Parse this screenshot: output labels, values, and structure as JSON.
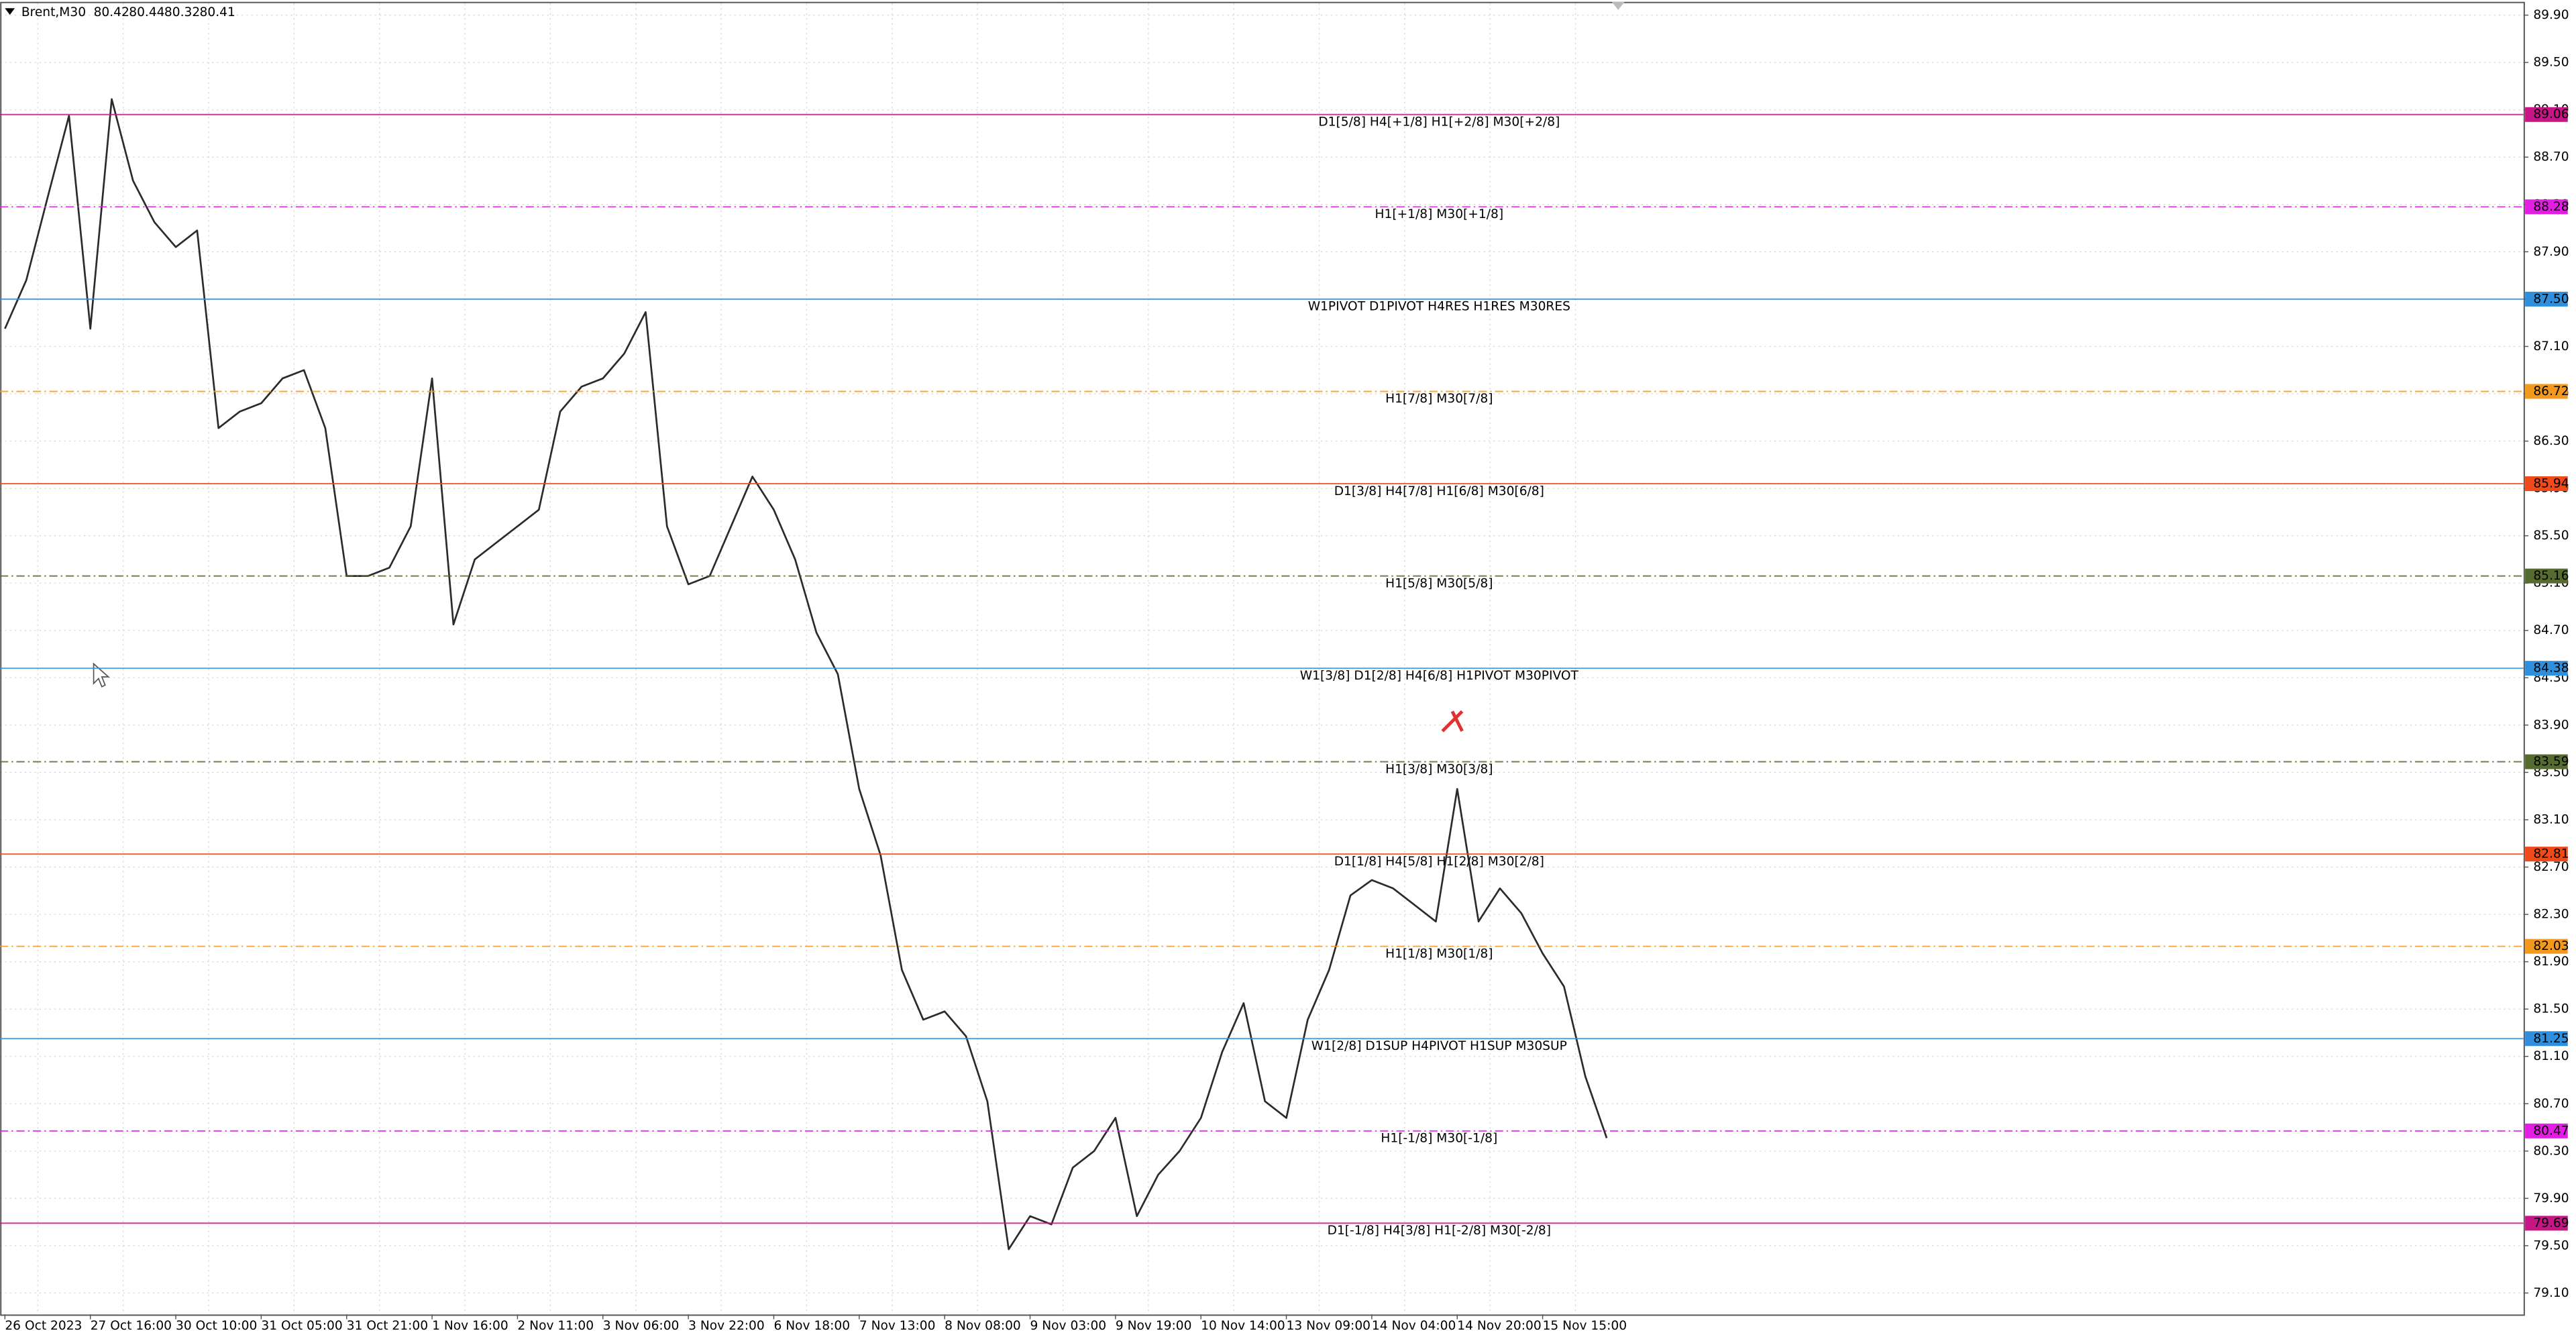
{
  "chart_data": {
    "type": "line",
    "title": "Brent,M30",
    "ohlc": [
      80.42,
      80.44,
      80.32,
      80.41
    ],
    "categories": [
      "26 Oct 2023",
      null,
      null,
      null,
      "27 Oct 16:00",
      null,
      null,
      null,
      "30 Oct 10:00",
      null,
      null,
      null,
      "31 Oct 05:00",
      null,
      null,
      null,
      "31 Oct 21:00",
      null,
      null,
      null,
      "1 Nov 16:00",
      null,
      null,
      null,
      "2 Nov 11:00",
      null,
      null,
      null,
      "3 Nov 06:00",
      null,
      null,
      null,
      "3 Nov 22:00",
      null,
      null,
      null,
      "6 Nov 18:00",
      null,
      null,
      null,
      "7 Nov 13:00",
      null,
      null,
      null,
      "8 Nov 08:00",
      null,
      null,
      null,
      "9 Nov 03:00",
      null,
      null,
      null,
      "9 Nov 19:00",
      null,
      null,
      null,
      "10 Nov 14:00",
      null,
      null,
      null,
      "13 Nov 09:00",
      null,
      null,
      null,
      "14 Nov 04:00",
      null,
      null,
      null,
      "14 Nov 20:00",
      null,
      null,
      null,
      "15 Nov 15:00",
      null,
      null,
      null
    ],
    "series": [
      {
        "name": "Brent",
        "color": "#2b2b2b",
        "values": [
          87.25,
          87.66,
          88.36,
          89.05,
          87.25,
          89.19,
          88.5,
          88.15,
          87.94,
          88.08,
          86.41,
          86.55,
          86.62,
          86.83,
          86.9,
          86.41,
          85.16,
          85.16,
          85.23,
          85.58,
          86.83,
          84.75,
          85.3,
          85.44,
          85.58,
          85.72,
          86.55,
          86.76,
          86.83,
          87.04,
          87.39,
          85.58,
          85.09,
          85.16,
          85.58,
          86.0,
          85.72,
          85.3,
          84.68,
          84.33,
          83.36,
          82.8,
          81.83,
          81.41,
          81.48,
          81.27,
          80.72,
          79.47,
          79.75,
          79.68,
          80.16,
          80.3,
          80.58,
          79.75,
          80.1,
          80.3,
          80.58,
          81.14,
          81.55,
          80.72,
          80.58,
          81.41,
          81.83,
          82.46,
          82.59,
          82.52,
          82.38,
          82.24,
          83.36,
          82.24,
          82.52,
          82.31,
          81.97,
          81.69,
          80.93,
          80.41
        ]
      }
    ],
    "levels": [
      {
        "price": 89.06,
        "label": "D1[5/8] H4[+1/8] H1[+2/8] M30[+2/8]",
        "color": "#c71585",
        "dashed": false
      },
      {
        "price": 88.28,
        "label": "H1[+1/8] M30[+1/8]",
        "color": "#e31ee3",
        "dashed": true
      },
      {
        "price": {
          "value": 87.5,
          "label": "87.50"
        },
        "label": "W1PIVOT D1PIVOT H4RES H1RES M30RES",
        "color": "#2f8fdc",
        "dashed": false
      },
      {
        "price": 86.72,
        "label": "H1[7/8] M30[7/8]",
        "color": "#f39a1e",
        "dashed": true
      },
      {
        "price": 85.94,
        "label": "D1[3/8] H4[7/8] H1[6/8] M30[6/8]",
        "color": "#f04a1a",
        "dashed": false
      },
      {
        "price": 85.16,
        "label": "H1[5/8] M30[5/8]",
        "color": "#556b2f",
        "dashed": true
      },
      {
        "price": 84.38,
        "label": "W1[3/8] D1[2/8] H4[6/8] H1PIVOT M30PIVOT",
        "color": "#2f8fdc",
        "dashed": false
      },
      {
        "price": 83.59,
        "label": "H1[3/8] M30[3/8]",
        "color": "#556b2f",
        "dashed": true
      },
      {
        "price": 82.81,
        "label": "D1[1/8] H4[5/8] H1[2/8] M30[2/8]",
        "color": "#f04a1a",
        "dashed": false
      },
      {
        "price": 82.03,
        "label": "H1[1/8] M30[1/8]",
        "color": "#f39a1e",
        "dashed": true
      },
      {
        "price": 81.25,
        "label": "W1[2/8] D1SUP H4PIVOT H1SUP M30SUP",
        "color": "#2f8fdc",
        "dashed": false
      },
      {
        "price": 80.47,
        "label": "H1[-1/8] M30[-1/8]",
        "color": "#e31ee3",
        "dashed": true
      },
      {
        "price": 79.69,
        "label": "D1[-1/8] H4[3/8] H1[-2/8] M30[-2/8]",
        "color": "#c71585",
        "dashed": false
      }
    ],
    "ylim": [
      78.92,
      90.0
    ],
    "yticks": [
      {
        "value": 89.9,
        "label": "89.90"
      },
      {
        "value": 89.5,
        "label": "89.50"
      },
      {
        "value": 89.1,
        "label": "89.10"
      },
      {
        "value": 88.7,
        "label": "88.70"
      },
      {
        "value": 88.3,
        "label": "88.30"
      },
      {
        "value": 87.9,
        "label": "87.90"
      },
      {
        "value": 87.5,
        "label": "87.50"
      },
      {
        "value": 87.1,
        "label": "87.10"
      },
      {
        "value": 86.7,
        "label": "86.70"
      },
      {
        "value": 86.3,
        "label": "86.30"
      },
      {
        "value": 85.9,
        "label": "85.90"
      },
      {
        "value": 85.5,
        "label": "85.50"
      },
      {
        "value": 85.1,
        "label": "85.10"
      },
      {
        "value": 84.7,
        "label": "84.70"
      },
      {
        "value": 84.3,
        "label": "84.30"
      },
      {
        "value": 83.9,
        "label": "83.90"
      },
      {
        "value": 83.5,
        "label": "83.50"
      },
      {
        "value": 83.1,
        "label": "83.10"
      },
      {
        "value": 82.7,
        "label": "82.70"
      },
      {
        "value": 82.3,
        "label": "82.30"
      },
      {
        "value": 81.9,
        "label": "81.90"
      },
      {
        "value": 81.5,
        "label": "81.50"
      },
      {
        "value": 81.1,
        "label": "81.10"
      },
      {
        "value": 80.7,
        "label": "80.70"
      },
      {
        "value": 80.3,
        "label": "80.30"
      },
      {
        "value": 79.9,
        "label": "79.90"
      },
      {
        "value": 79.5,
        "label": "79.50"
      },
      {
        "value": 79.1,
        "label": "79.10"
      }
    ],
    "grid": true
  }
}
